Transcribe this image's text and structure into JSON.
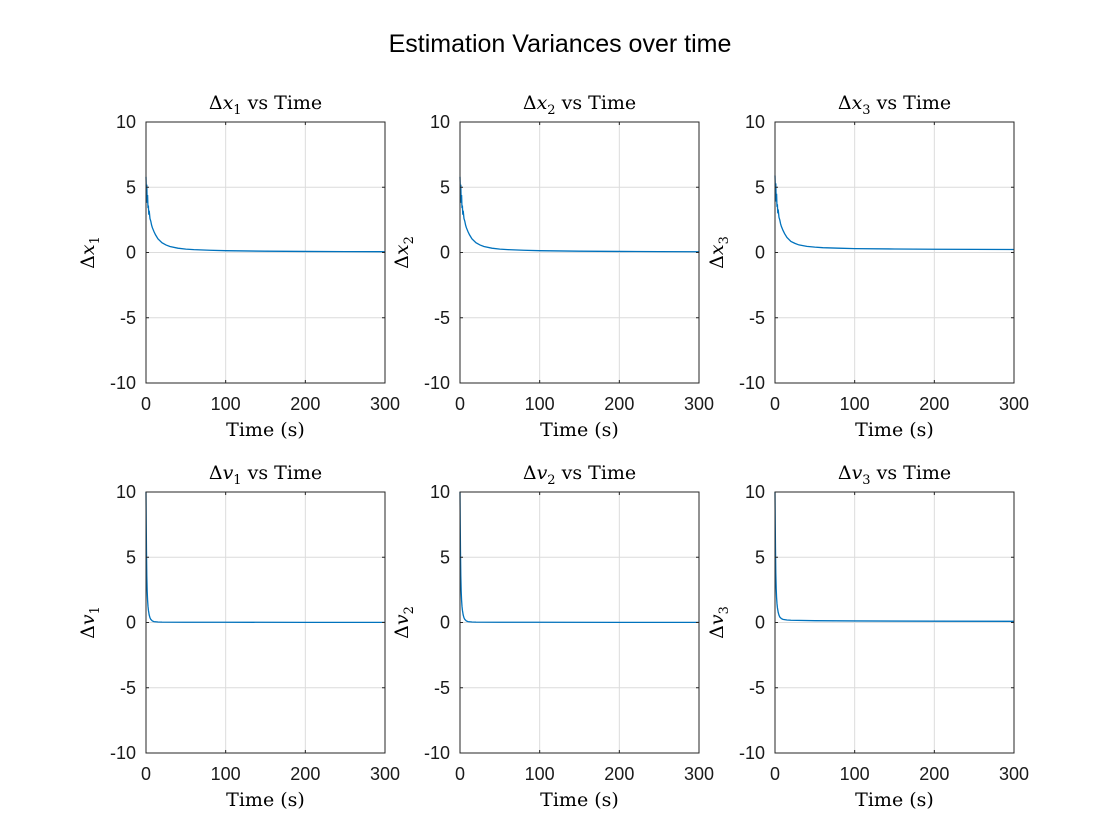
{
  "figure": {
    "title": "Estimation Variances over time",
    "series_color": "#0072BD"
  },
  "chart_data": [
    {
      "type": "line",
      "title": {
        "prefix": "Δ",
        "var": "x",
        "sub": "1",
        "suffix": " vs Time"
      },
      "xlabel": "Time (s)",
      "ylabel": {
        "prefix": "Δ",
        "var": "x",
        "sub": "1"
      },
      "xlim": [
        0,
        300
      ],
      "ylim": [
        -10,
        10
      ],
      "xticks": [
        0,
        100,
        200,
        300
      ],
      "yticks": [
        -10,
        -5,
        0,
        5,
        10
      ],
      "grid": true,
      "series": [
        {
          "x": [
            0,
            0.5,
            1,
            1.5,
            2,
            2.5,
            3,
            3.5,
            4,
            5,
            6,
            7,
            8,
            10,
            12,
            15,
            20,
            25,
            30,
            40,
            50,
            60,
            80,
            100,
            150,
            200,
            250,
            300
          ],
          "y": [
            5.8,
            4.6,
            5.2,
            3.8,
            4.4,
            3.4,
            3.6,
            2.9,
            3.2,
            2.6,
            2.4,
            2.1,
            1.9,
            1.6,
            1.35,
            1.05,
            0.75,
            0.58,
            0.46,
            0.33,
            0.26,
            0.22,
            0.17,
            0.14,
            0.1,
            0.08,
            0.07,
            0.06
          ]
        }
      ]
    },
    {
      "type": "line",
      "title": {
        "prefix": "Δ",
        "var": "x",
        "sub": "2",
        "suffix": " vs Time"
      },
      "xlabel": "Time (s)",
      "ylabel": {
        "prefix": "Δ",
        "var": "x",
        "sub": "2"
      },
      "xlim": [
        0,
        300
      ],
      "ylim": [
        -10,
        10
      ],
      "xticks": [
        0,
        100,
        200,
        300
      ],
      "yticks": [
        -10,
        -5,
        0,
        5,
        10
      ],
      "grid": true,
      "series": [
        {
          "x": [
            0,
            0.5,
            1,
            1.5,
            2,
            2.5,
            3,
            3.5,
            4,
            5,
            6,
            7,
            8,
            10,
            12,
            15,
            20,
            25,
            30,
            40,
            50,
            60,
            80,
            100,
            150,
            200,
            250,
            300
          ],
          "y": [
            5.8,
            4.6,
            5.2,
            3.8,
            4.4,
            3.4,
            3.6,
            2.9,
            3.2,
            2.6,
            2.4,
            2.1,
            1.9,
            1.6,
            1.35,
            1.05,
            0.75,
            0.58,
            0.46,
            0.33,
            0.26,
            0.22,
            0.17,
            0.14,
            0.1,
            0.08,
            0.07,
            0.06
          ]
        }
      ]
    },
    {
      "type": "line",
      "title": {
        "prefix": "Δ",
        "var": "x",
        "sub": "3",
        "suffix": " vs Time"
      },
      "xlabel": "Time (s)",
      "ylabel": {
        "prefix": "Δ",
        "var": "x",
        "sub": "3"
      },
      "xlim": [
        0,
        300
      ],
      "ylim": [
        -10,
        10
      ],
      "xticks": [
        0,
        100,
        200,
        300
      ],
      "yticks": [
        -10,
        -5,
        0,
        5,
        10
      ],
      "grid": true,
      "series": [
        {
          "x": [
            0,
            0.5,
            1,
            1.5,
            2,
            2.5,
            3,
            3.5,
            4,
            5,
            6,
            7,
            8,
            10,
            12,
            15,
            20,
            25,
            30,
            40,
            50,
            60,
            80,
            100,
            150,
            200,
            250,
            300
          ],
          "y": [
            5.9,
            4.7,
            5.3,
            3.9,
            4.5,
            3.5,
            3.7,
            3.0,
            3.3,
            2.7,
            2.5,
            2.2,
            2.0,
            1.7,
            1.45,
            1.15,
            0.85,
            0.7,
            0.58,
            0.47,
            0.41,
            0.37,
            0.33,
            0.3,
            0.27,
            0.25,
            0.24,
            0.23
          ]
        }
      ]
    },
    {
      "type": "line",
      "title": {
        "prefix": "Δ",
        "var": "v",
        "sub": "1",
        "suffix": " vs Time"
      },
      "xlabel": "Time (s)",
      "ylabel": {
        "prefix": "Δ",
        "var": "v",
        "sub": "1"
      },
      "xlim": [
        0,
        300
      ],
      "ylim": [
        -10,
        10
      ],
      "xticks": [
        0,
        100,
        200,
        300
      ],
      "yticks": [
        -10,
        -5,
        0,
        5,
        10
      ],
      "grid": true,
      "series": [
        {
          "x": [
            0,
            0.3,
            0.6,
            1,
            1.5,
            2,
            2.5,
            3,
            4,
            5,
            6,
            8,
            10,
            15,
            20,
            50,
            100,
            200,
            300
          ],
          "y": [
            10,
            7.5,
            5.5,
            3.6,
            2.4,
            1.7,
            1.25,
            0.95,
            0.58,
            0.36,
            0.24,
            0.12,
            0.07,
            0.04,
            0.03,
            0.02,
            0.02,
            0.01,
            0.01
          ]
        }
      ]
    },
    {
      "type": "line",
      "title": {
        "prefix": "Δ",
        "var": "v",
        "sub": "2",
        "suffix": " vs Time"
      },
      "xlabel": "Time (s)",
      "ylabel": {
        "prefix": "Δ",
        "var": "v",
        "sub": "2"
      },
      "xlim": [
        0,
        300
      ],
      "ylim": [
        -10,
        10
      ],
      "xticks": [
        0,
        100,
        200,
        300
      ],
      "yticks": [
        -10,
        -5,
        0,
        5,
        10
      ],
      "grid": true,
      "series": [
        {
          "x": [
            0,
            0.3,
            0.6,
            1,
            1.5,
            2,
            2.5,
            3,
            4,
            5,
            6,
            8,
            10,
            15,
            20,
            50,
            100,
            200,
            300
          ],
          "y": [
            10,
            7.5,
            5.5,
            3.6,
            2.4,
            1.7,
            1.25,
            0.95,
            0.58,
            0.36,
            0.24,
            0.12,
            0.07,
            0.04,
            0.03,
            0.02,
            0.02,
            0.01,
            0.01
          ]
        }
      ]
    },
    {
      "type": "line",
      "title": {
        "prefix": "Δ",
        "var": "v",
        "sub": "3",
        "suffix": " vs Time"
      },
      "xlabel": "Time (s)",
      "ylabel": {
        "prefix": "Δ",
        "var": "v",
        "sub": "3"
      },
      "xlim": [
        0,
        300
      ],
      "ylim": [
        -10,
        10
      ],
      "xticks": [
        0,
        100,
        200,
        300
      ],
      "yticks": [
        -10,
        -5,
        0,
        5,
        10
      ],
      "grid": true,
      "series": [
        {
          "x": [
            0,
            0.3,
            0.6,
            1,
            1.5,
            2,
            2.5,
            3,
            4,
            5,
            6,
            8,
            10,
            15,
            20,
            50,
            100,
            200,
            300
          ],
          "y": [
            10,
            7.6,
            5.7,
            3.8,
            2.6,
            1.9,
            1.45,
            1.15,
            0.78,
            0.56,
            0.42,
            0.3,
            0.24,
            0.19,
            0.17,
            0.14,
            0.12,
            0.1,
            0.09
          ]
        }
      ]
    }
  ]
}
